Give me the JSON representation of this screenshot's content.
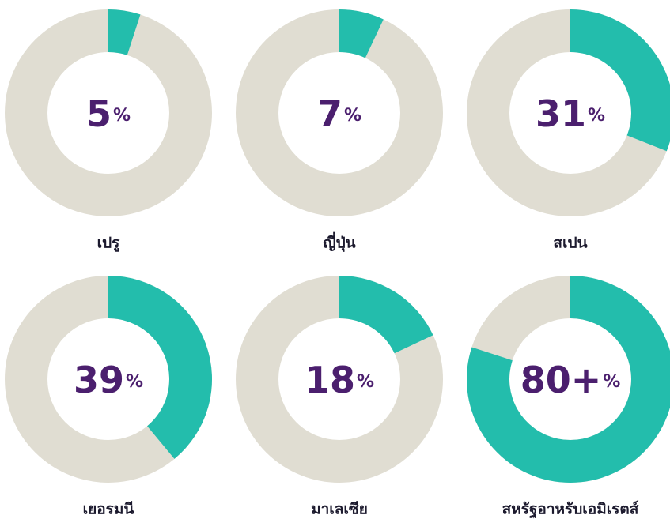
{
  "chart_data": [
    {
      "type": "donut",
      "categories": [
        "เปรู"
      ],
      "values": [
        5
      ],
      "value_labels": [
        "5%"
      ],
      "color": "#23bdac"
    },
    {
      "type": "donut",
      "categories": [
        "ญี่ปุ่น"
      ],
      "values": [
        7
      ],
      "value_labels": [
        "7%"
      ],
      "color": "#23bdac"
    },
    {
      "type": "donut",
      "categories": [
        "สเปน"
      ],
      "values": [
        31
      ],
      "value_labels": [
        "31%"
      ],
      "color": "#23bdac"
    },
    {
      "type": "donut",
      "categories": [
        "เยอรมนี"
      ],
      "values": [
        39
      ],
      "value_labels": [
        "39%"
      ],
      "color": "#23bdac"
    },
    {
      "type": "donut",
      "categories": [
        "มาเลเซีย"
      ],
      "values": [
        18
      ],
      "value_labels": [
        "18%"
      ],
      "color": "#23bdac"
    },
    {
      "type": "donut",
      "categories": [
        "สหรัฐอาหรับเอมิเรตส์"
      ],
      "values": [
        80
      ],
      "value_labels": [
        "80+%"
      ],
      "color": "#23bdac"
    }
  ]
}
